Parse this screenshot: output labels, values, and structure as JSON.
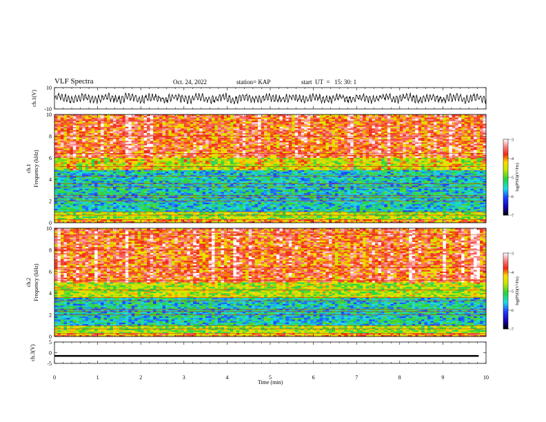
{
  "header": {
    "title": "VLF Spectra",
    "date": "Oct. 24, 2022",
    "station": "station= KAP",
    "start": "start  UT  =   15: 30: 1"
  },
  "colors": {
    "spectrogram_red": "#ee2a1c",
    "spectrogram_yellow": "#f2e600",
    "spectrogram_green": "#33cc44",
    "spectrogram_cyan": "#22dddd",
    "spectrogram_blue": "#2244ee",
    "trace": "#000000"
  },
  "chart_data": [
    {
      "type": "line",
      "panel": "ch1-waveform",
      "ylabel": "ch.1(V)",
      "ylim": [
        -10,
        10
      ],
      "yticks": [
        "10",
        "-10"
      ],
      "xlim": [
        0,
        10
      ],
      "description_of_series": "noisy voltage waveform around 0 V with amplitude roughly ±5 V",
      "series": [
        {
          "name": "",
          "mean": 0,
          "amplitude": 5
        }
      ]
    },
    {
      "type": "heatmap",
      "panel": "ch1-spectrogram",
      "ylabel": "ch.1",
      "ylabel2": "Frequency  (kHz)",
      "ylim": [
        0,
        10
      ],
      "yticks": [
        "0",
        "2",
        "4",
        "6",
        "8",
        "10"
      ],
      "xlim": [
        0,
        10
      ],
      "bands_khz": [
        {
          "from": 0,
          "to": 0.3,
          "level": -4
        },
        {
          "from": 0.3,
          "to": 1.0,
          "level": -4.7
        },
        {
          "from": 1.0,
          "to": 4.9,
          "level": -5.5
        },
        {
          "from": 4.9,
          "to": 6.0,
          "level": -4.5
        },
        {
          "from": 6.0,
          "to": 10,
          "level": -3.8
        }
      ],
      "colorbar": {
        "min": -7,
        "max": -3,
        "ticks": [
          "-3",
          "-4",
          "-5",
          "-6",
          "-7"
        ],
        "label": "log(PSD)(V²/Hz)"
      }
    },
    {
      "type": "heatmap",
      "panel": "ch2-spectrogram",
      "ylabel": "ch.2",
      "ylabel2": "Frequency  (kHz)",
      "ylim": [
        0,
        10
      ],
      "yticks": [
        "0",
        "2",
        "4",
        "6",
        "8",
        "10"
      ],
      "xlim": [
        0,
        10
      ],
      "bands_khz": [
        {
          "from": 0,
          "to": 0.3,
          "level": -4
        },
        {
          "from": 0.3,
          "to": 1.0,
          "level": -4.7
        },
        {
          "from": 1.0,
          "to": 3.6,
          "level": -5.5
        },
        {
          "from": 3.6,
          "to": 5.0,
          "level": -4.6
        },
        {
          "from": 5.0,
          "to": 10,
          "level": -3.8
        }
      ],
      "colorbar": {
        "min": -7,
        "max": -3,
        "ticks": [
          "-3",
          "-4",
          "-5",
          "-6",
          "-7"
        ],
        "label": "log(PSD)(V²/Hz)"
      }
    },
    {
      "type": "line",
      "panel": "ch3-waveform",
      "ylabel": "ch.3(V)",
      "ylim": [
        -5,
        5
      ],
      "yticks": [
        "5",
        "0",
        "-5"
      ],
      "xlim": [
        0,
        10
      ],
      "xticks": [
        "0",
        "1",
        "2",
        "3",
        "4",
        "5",
        "6",
        "7",
        "8",
        "9",
        "10"
      ],
      "xlabel": "Time  (min)",
      "series": [
        {
          "name": "",
          "mean": -1.5,
          "amplitude": 0.4,
          "x_end": 9.83
        }
      ]
    }
  ]
}
